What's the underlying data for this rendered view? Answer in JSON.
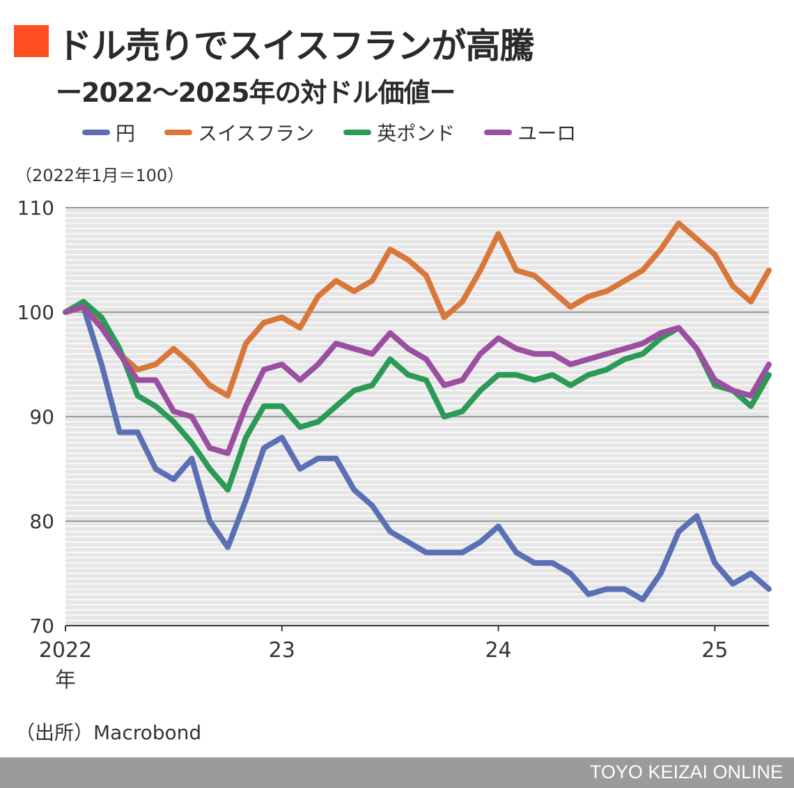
{
  "header": {
    "title": "ドル売りでスイスフランが高騰",
    "subtitle": "ー2022～2025年の対ドル価値ー",
    "accent_color": "#ff4e1f"
  },
  "unit_note": "（2022年1月＝100）",
  "source": "（出所）Macrobond",
  "footer": {
    "brand": "TOYO KEIZAI ONLINE"
  },
  "chart_data": {
    "type": "line",
    "title": "ドル売りでスイスフランが高騰",
    "subtitle": "ー2022～2025年の対ドル価値ー",
    "ylabel": "（2022年1月＝100）",
    "ylim": [
      70,
      110
    ],
    "yticks": [
      70,
      80,
      90,
      100,
      110
    ],
    "xlim": [
      "2022-01",
      "2025-04"
    ],
    "xticks": [
      {
        "x": "2022-01",
        "label": "2022",
        "label2": "年"
      },
      {
        "x": "2023-01",
        "label": "23"
      },
      {
        "x": "2024-01",
        "label": "24"
      },
      {
        "x": "2025-01",
        "label": "25"
      }
    ],
    "grid": true,
    "legend": "top",
    "x": [
      "2022-01",
      "2022-02",
      "2022-03",
      "2022-04",
      "2022-05",
      "2022-06",
      "2022-07",
      "2022-08",
      "2022-09",
      "2022-10",
      "2022-11",
      "2022-12",
      "2023-01",
      "2023-02",
      "2023-03",
      "2023-04",
      "2023-05",
      "2023-06",
      "2023-07",
      "2023-08",
      "2023-09",
      "2023-10",
      "2023-11",
      "2023-12",
      "2024-01",
      "2024-02",
      "2024-03",
      "2024-04",
      "2024-05",
      "2024-06",
      "2024-07",
      "2024-08",
      "2024-09",
      "2024-10",
      "2024-11",
      "2024-12",
      "2025-01",
      "2025-02",
      "2025-03",
      "2025-04"
    ],
    "series": [
      {
        "name": "円",
        "color": "#5b6fb5",
        "values": [
          100,
          100.5,
          95,
          88.5,
          88.5,
          85,
          84,
          86,
          80,
          77.5,
          82,
          87,
          88,
          85,
          86,
          86,
          83,
          81.5,
          79,
          78,
          77,
          77,
          77,
          78,
          79.5,
          77,
          76,
          76,
          75,
          73,
          73.5,
          73.5,
          72.5,
          75,
          79,
          80.5,
          76,
          74,
          75,
          73.5
        ]
      },
      {
        "name": "スイスフラン",
        "color": "#d9773a",
        "values": [
          100,
          100.5,
          99,
          96,
          94.5,
          95,
          96.5,
          95,
          93,
          92,
          97,
          99,
          99.5,
          98.5,
          101.5,
          103,
          102,
          103,
          106,
          105,
          103.5,
          99.5,
          101,
          104,
          107.5,
          104,
          103.5,
          102,
          100.5,
          101.5,
          102,
          103,
          104,
          106,
          108.5,
          107,
          105.5,
          102.5,
          101,
          104
        ]
      },
      {
        "name": "英ポンド",
        "color": "#2a9a55",
        "values": [
          100,
          101,
          99.5,
          96.5,
          92,
          91,
          89.5,
          87.5,
          85,
          83,
          88,
          91,
          91,
          89,
          89.5,
          91,
          92.5,
          93,
          95.5,
          94,
          93.5,
          90,
          90.5,
          92.5,
          94,
          94,
          93.5,
          94,
          93,
          94,
          94.5,
          95.5,
          96,
          97.5,
          98.5,
          96.5,
          93,
          92.5,
          91,
          94
        ]
      },
      {
        "name": "ユーロ",
        "color": "#9b4fa0",
        "values": [
          100,
          100.5,
          98.5,
          96,
          93.5,
          93.5,
          90.5,
          90,
          87,
          86.5,
          91,
          94.5,
          95,
          93.5,
          95,
          97,
          96.5,
          96,
          98,
          96.5,
          95.5,
          93,
          93.5,
          96,
          97.5,
          96.5,
          96,
          96,
          95,
          95.5,
          96,
          96.5,
          97,
          98,
          98.5,
          96.5,
          93.5,
          92.5,
          92,
          95
        ]
      }
    ]
  }
}
